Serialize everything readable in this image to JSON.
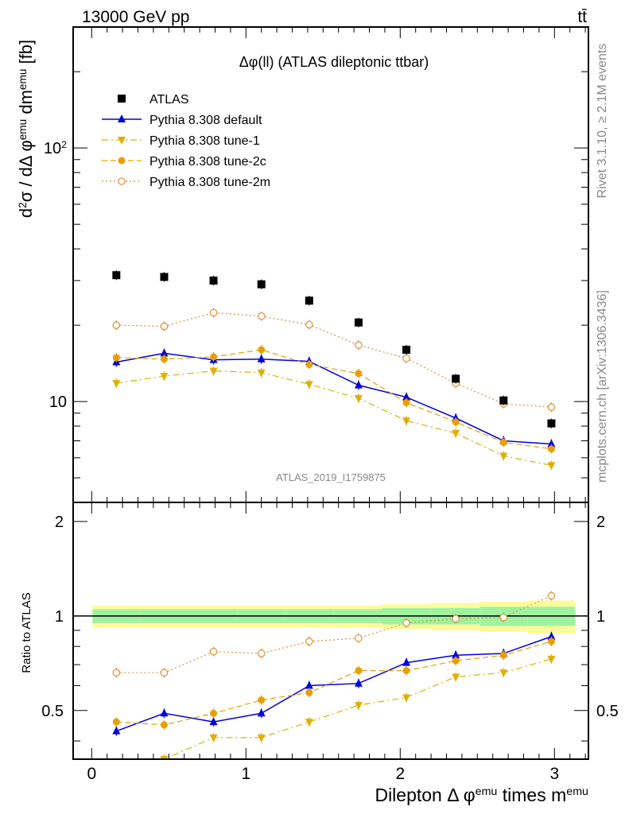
{
  "header": {
    "left": "13000 GeV pp",
    "right": "tt̄"
  },
  "side_labels": {
    "rivet": "Rivet 3.1.10, ≥ 2.1M events",
    "mcplots": "mcplots.cern.ch [arXiv:1306.3436]"
  },
  "chart_data": {
    "type": "scatter",
    "title": "Δφ(ll) (ATLAS dileptonic ttbar)",
    "analysis_id": "ATLAS_2019_I1759875",
    "xlabel": "Dilepton Δ φ^emu times m^emu",
    "ylabel": "d²σ / dΔ φ^emu dm^emu [fb]",
    "ratio_ylabel": "Ratio to ATLAS",
    "log_y": true,
    "xlim": [
      -0.12,
      3.22
    ],
    "ylim": [
      4.0,
      300.0
    ],
    "ratio_ylim": [
      0.35,
      2.3
    ],
    "x_ticks": [
      {
        "v": 0,
        "label": "0"
      },
      {
        "v": 1,
        "label": "1"
      },
      {
        "v": 2,
        "label": "2"
      },
      {
        "v": 3,
        "label": "3"
      }
    ],
    "y_ticks": [
      {
        "v": 10,
        "label": "10"
      },
      {
        "v": 100,
        "label": "10²"
      }
    ],
    "ratio_ticks": [
      {
        "v": 0.5,
        "label": "0.5"
      },
      {
        "v": 1,
        "label": "1"
      },
      {
        "v": 2,
        "label": "2"
      }
    ],
    "x": [
      0.16,
      0.47,
      0.79,
      1.1,
      1.41,
      1.73,
      2.04,
      2.36,
      2.67,
      2.98
    ],
    "series": [
      {
        "name": "ATLAS",
        "color": "#000000",
        "marker": "square",
        "line": "none",
        "values": [
          31.5,
          31.0,
          30.0,
          29.0,
          25.0,
          20.5,
          16.0,
          12.3,
          10.1,
          8.2
        ]
      },
      {
        "name": "Pythia 8.308 default",
        "color": "#0000dd",
        "marker": "triangle-up",
        "line": "solid",
        "values": [
          14.3,
          15.5,
          14.6,
          14.7,
          14.4,
          11.6,
          10.4,
          8.6,
          7.0,
          6.8
        ],
        "ratio": [
          0.43,
          0.49,
          0.46,
          0.49,
          0.6,
          0.61,
          0.71,
          0.75,
          0.76,
          0.86
        ]
      },
      {
        "name": "Pythia 8.308 tune-1",
        "color": "#e0b000",
        "marker": "triangle-down",
        "line": "dashdot",
        "values": [
          11.8,
          12.6,
          13.2,
          13.0,
          11.7,
          10.3,
          8.4,
          7.5,
          6.1,
          5.6
        ],
        "ratio": [
          0.34,
          0.35,
          0.41,
          0.41,
          0.46,
          0.52,
          0.55,
          0.64,
          0.66,
          0.73
        ]
      },
      {
        "name": "Pythia 8.308 tune-2c",
        "color": "#e8a000",
        "marker": "circle",
        "line": "dashed",
        "values": [
          14.9,
          14.7,
          15.0,
          16.0,
          14.0,
          12.9,
          9.9,
          8.3,
          6.9,
          6.5
        ],
        "ratio": [
          0.46,
          0.45,
          0.49,
          0.54,
          0.57,
          0.67,
          0.67,
          0.72,
          0.75,
          0.83
        ]
      },
      {
        "name": "Pythia 8.308 tune-2m",
        "color": "#e08e3a",
        "marker": "open-circle",
        "line": "dotted",
        "values": [
          20.0,
          19.8,
          22.4,
          21.7,
          20.1,
          16.7,
          14.8,
          11.8,
          9.8,
          9.5
        ],
        "ratio": [
          0.66,
          0.66,
          0.77,
          0.76,
          0.83,
          0.85,
          0.95,
          0.98,
          0.99,
          1.16
        ]
      }
    ],
    "uncertainty_band": {
      "inner": [
        0.05,
        0.05,
        0.05,
        0.05,
        0.05,
        0.05,
        0.06,
        0.06,
        0.07,
        0.07
      ],
      "outer": [
        0.08,
        0.08,
        0.08,
        0.08,
        0.08,
        0.08,
        0.09,
        0.1,
        0.11,
        0.12
      ]
    }
  }
}
